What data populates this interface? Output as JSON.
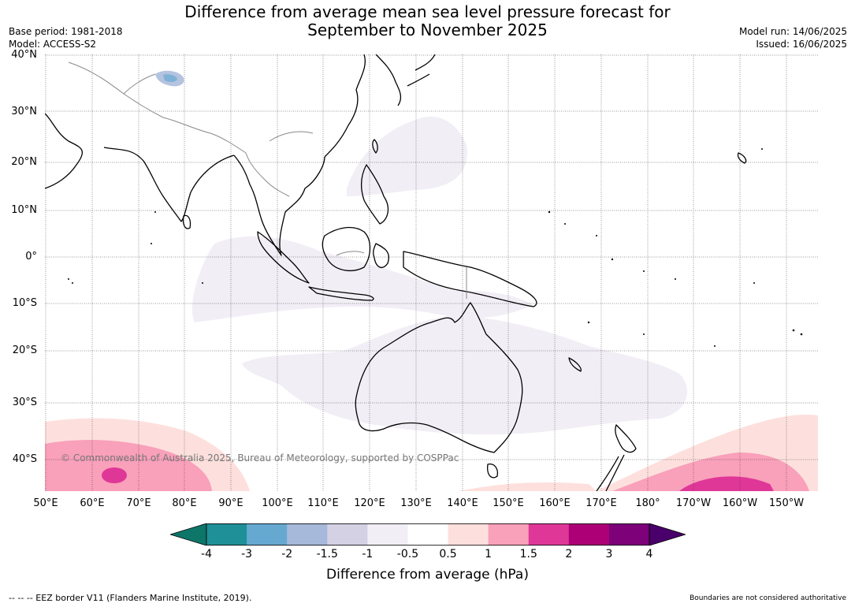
{
  "title": {
    "line1": "Difference from average mean sea level pressure forecast for",
    "line2": "September to November 2025"
  },
  "meta": {
    "base_period": "Base period: 1981-2018",
    "model": "Model: ACCESS-S2",
    "model_run": "Model run: 14/06/2025",
    "issued": "Issued: 16/06/2025"
  },
  "map": {
    "lat_labels": [
      "40°N",
      "30°N",
      "20°N",
      "10°N",
      "0°",
      "10°S",
      "20°S",
      "30°S",
      "40°S"
    ],
    "lon_labels": [
      "50°E",
      "60°E",
      "70°E",
      "80°E",
      "90°E",
      "100°E",
      "110°E",
      "120°E",
      "130°E",
      "140°E",
      "150°E",
      "160°E",
      "170°E",
      "180°",
      "170°W",
      "160°W",
      "150°W"
    ],
    "copyright": "© Commonwealth of Australia 2025, Bureau of Meteorology, supported by COSPPac",
    "regions": [
      {
        "name": "negative-anomaly-tropical-indian-ocean-maritime-continent",
        "range": "-1 to -0.5"
      },
      {
        "name": "negative-anomaly-western-north-pacific",
        "range": "-1 to -0.5"
      },
      {
        "name": "negative-anomaly-australia",
        "range": "-1 to -0.5"
      },
      {
        "name": "negative-anomaly-tibet",
        "range": "-3 to -1"
      },
      {
        "name": "positive-anomaly-southern-indian-ocean",
        "range": "0.5 to 2"
      },
      {
        "name": "positive-anomaly-southwest-pacific",
        "range": "0.5 to 2"
      }
    ]
  },
  "colorbar": {
    "levels": [
      -4,
      -3,
      -2,
      -1.5,
      -1,
      -0.5,
      0.5,
      1,
      1.5,
      2,
      3,
      4
    ],
    "tick_labels": [
      "-4",
      "-3",
      "-2",
      "-1.5",
      "-1",
      "-0.5",
      "0.5",
      "1",
      "1.5",
      "2",
      "3",
      "4"
    ],
    "colors": [
      "#0e7569",
      "#1f9097",
      "#66a9d0",
      "#a7b9da",
      "#d3d1e3",
      "#f2eef6",
      "#ffffff",
      "#fde0dd",
      "#f9a0ba",
      "#df3797",
      "#ad0077",
      "#7d0179",
      "#49006a"
    ],
    "label": "Difference from average (hPa)"
  },
  "footer": {
    "left": "--  --  -- EEZ border V11 (Flanders Marine Institute, 2019).",
    "right": "Boundaries are not considered authoritative"
  }
}
